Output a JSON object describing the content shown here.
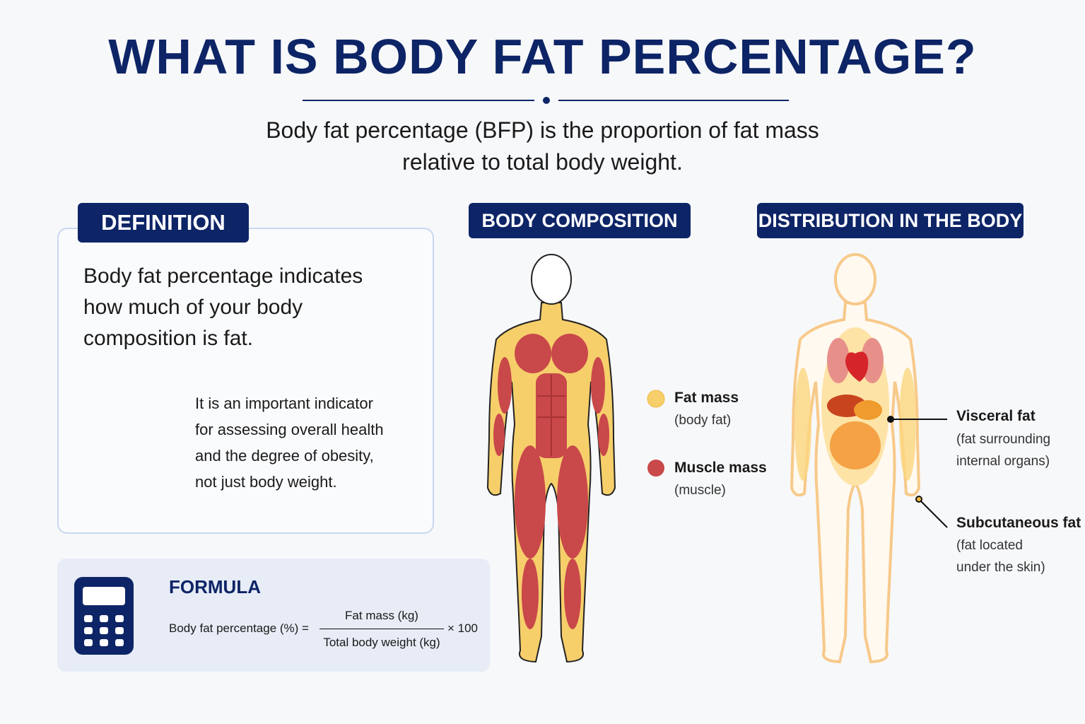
{
  "header": {
    "title": "WHAT IS BODY FAT PERCENTAGE?",
    "subtitle": [
      "Body fat percentage (BFP) is the proportion of fat mass",
      "relative to total body weight."
    ]
  },
  "definition": {
    "heading": "DEFINITION",
    "text": [
      "Body fat percentage indicates",
      "how much of your body",
      "composition is fat."
    ],
    "note": [
      "It is an important indicator",
      "for assessing overall health",
      "and the degree of obesity,",
      "not just body weight."
    ]
  },
  "formula": {
    "heading": "FORMULA",
    "lhs": "Body fat percentage (%) =",
    "numerator": "Fat mass (kg)",
    "denominator": "Total body weight (kg)",
    "multiplier": "× 100"
  },
  "composition": {
    "heading": "BODY COMPOSITION",
    "legend": [
      {
        "label": "Fat mass",
        "detail": "(body fat)"
      },
      {
        "label": "Muscle mass",
        "detail": "(muscle)"
      }
    ]
  },
  "distribution": {
    "heading": "DISTRIBUTION IN THE BODY",
    "labels": [
      {
        "label": "Visceral fat",
        "detail": [
          "(fat surrounding",
          "internal organs)"
        ]
      },
      {
        "label": "Subcutaneous fat",
        "detail": [
          "(fat located",
          "under the skin)"
        ]
      }
    ]
  }
}
